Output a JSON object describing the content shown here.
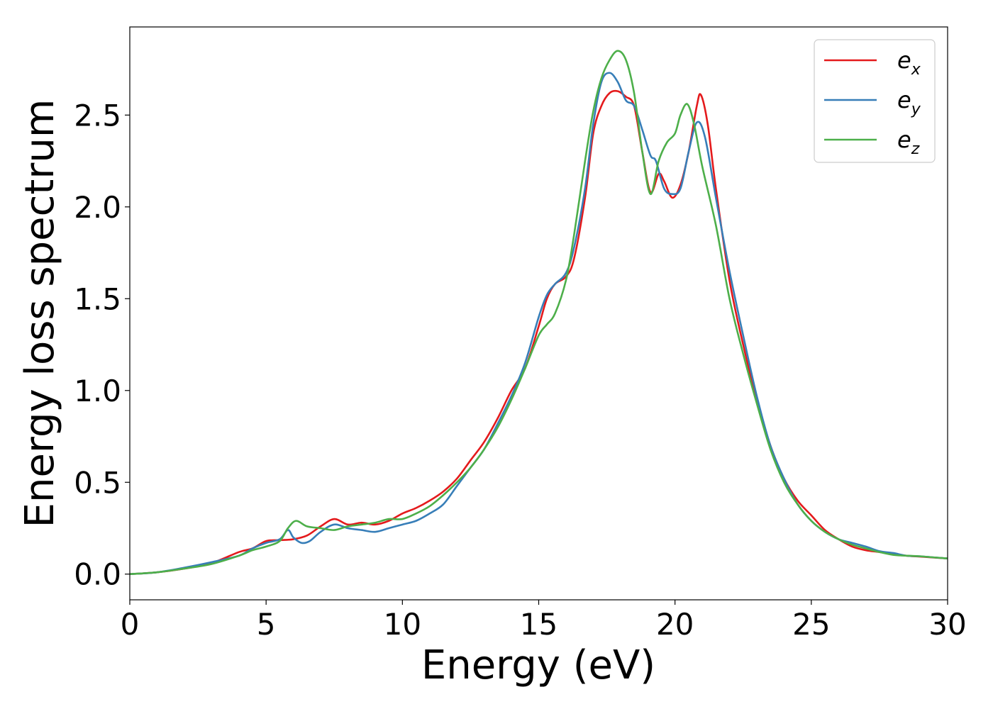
{
  "chart_data": {
    "type": "line",
    "title": "",
    "xlabel": "Energy (eV)",
    "ylabel": "Energy loss spectrum",
    "xlim": [
      0,
      30
    ],
    "ylim": [
      -0.14,
      2.98
    ],
    "xticks": [
      0,
      5,
      10,
      15,
      20,
      25,
      30
    ],
    "xtick_labels": [
      "0",
      "5",
      "10",
      "15",
      "20",
      "25",
      "30"
    ],
    "yticks": [
      0.0,
      0.5,
      1.0,
      1.5,
      2.0,
      2.5
    ],
    "ytick_labels": [
      "0.0",
      "0.5",
      "1.0",
      "1.5",
      "2.0",
      "2.5"
    ],
    "grid": false,
    "legend_position": "top-right",
    "series": [
      {
        "name": "e_x",
        "label_base": "e",
        "label_sub": "x",
        "color": "#e41a1c",
        "points": [
          [
            0,
            0
          ],
          [
            1,
            0.01
          ],
          [
            2,
            0.03
          ],
          [
            3,
            0.06
          ],
          [
            4,
            0.12
          ],
          [
            4.5,
            0.14
          ],
          [
            5,
            0.18
          ],
          [
            5.5,
            0.185
          ],
          [
            6,
            0.19
          ],
          [
            6.5,
            0.21
          ],
          [
            7,
            0.26
          ],
          [
            7.5,
            0.3
          ],
          [
            8,
            0.27
          ],
          [
            8.5,
            0.28
          ],
          [
            9,
            0.27
          ],
          [
            9.5,
            0.29
          ],
          [
            10,
            0.33
          ],
          [
            10.5,
            0.36
          ],
          [
            11,
            0.4
          ],
          [
            11.5,
            0.45
          ],
          [
            12,
            0.52
          ],
          [
            12.5,
            0.62
          ],
          [
            13,
            0.72
          ],
          [
            13.5,
            0.85
          ],
          [
            14,
            1.0
          ],
          [
            14.5,
            1.12
          ],
          [
            15,
            1.35
          ],
          [
            15.3,
            1.5
          ],
          [
            15.6,
            1.58
          ],
          [
            16,
            1.62
          ],
          [
            16.3,
            1.72
          ],
          [
            16.7,
            2.05
          ],
          [
            17,
            2.4
          ],
          [
            17.3,
            2.55
          ],
          [
            17.6,
            2.62
          ],
          [
            17.9,
            2.63
          ],
          [
            18.2,
            2.6
          ],
          [
            18.5,
            2.55
          ],
          [
            18.8,
            2.3
          ],
          [
            19.1,
            2.08
          ],
          [
            19.4,
            2.18
          ],
          [
            19.6,
            2.14
          ],
          [
            19.9,
            2.05
          ],
          [
            20.2,
            2.12
          ],
          [
            20.5,
            2.3
          ],
          [
            20.8,
            2.55
          ],
          [
            20.95,
            2.61
          ],
          [
            21.2,
            2.45
          ],
          [
            21.5,
            2.1
          ],
          [
            22,
            1.6
          ],
          [
            22.5,
            1.25
          ],
          [
            23,
            0.95
          ],
          [
            23.5,
            0.7
          ],
          [
            24,
            0.52
          ],
          [
            24.5,
            0.4
          ],
          [
            25,
            0.32
          ],
          [
            25.5,
            0.24
          ],
          [
            26,
            0.19
          ],
          [
            26.5,
            0.15
          ],
          [
            27,
            0.13
          ],
          [
            27.5,
            0.12
          ],
          [
            28,
            0.11
          ],
          [
            28.5,
            0.1
          ],
          [
            29,
            0.095
          ],
          [
            30,
            0.085
          ]
        ]
      },
      {
        "name": "e_y",
        "label_base": "e",
        "label_sub": "y",
        "color": "#377eb8",
        "points": [
          [
            0,
            0
          ],
          [
            1,
            0.01
          ],
          [
            2,
            0.035
          ],
          [
            3,
            0.065
          ],
          [
            4,
            0.1
          ],
          [
            4.5,
            0.14
          ],
          [
            5,
            0.17
          ],
          [
            5.5,
            0.19
          ],
          [
            5.8,
            0.24
          ],
          [
            6,
            0.2
          ],
          [
            6.3,
            0.17
          ],
          [
            6.6,
            0.18
          ],
          [
            7,
            0.23
          ],
          [
            7.5,
            0.27
          ],
          [
            8,
            0.25
          ],
          [
            8.5,
            0.24
          ],
          [
            9,
            0.23
          ],
          [
            9.5,
            0.25
          ],
          [
            10,
            0.27
          ],
          [
            10.5,
            0.29
          ],
          [
            11,
            0.33
          ],
          [
            11.5,
            0.38
          ],
          [
            12,
            0.48
          ],
          [
            12.5,
            0.58
          ],
          [
            13,
            0.68
          ],
          [
            13.5,
            0.82
          ],
          [
            14,
            0.97
          ],
          [
            14.5,
            1.15
          ],
          [
            15,
            1.4
          ],
          [
            15.3,
            1.52
          ],
          [
            15.6,
            1.58
          ],
          [
            16,
            1.64
          ],
          [
            16.3,
            1.78
          ],
          [
            16.7,
            2.1
          ],
          [
            17,
            2.45
          ],
          [
            17.3,
            2.68
          ],
          [
            17.6,
            2.73
          ],
          [
            17.9,
            2.68
          ],
          [
            18.2,
            2.58
          ],
          [
            18.5,
            2.55
          ],
          [
            18.8,
            2.42
          ],
          [
            19.1,
            2.28
          ],
          [
            19.3,
            2.25
          ],
          [
            19.6,
            2.1
          ],
          [
            19.9,
            2.07
          ],
          [
            20.2,
            2.1
          ],
          [
            20.5,
            2.3
          ],
          [
            20.8,
            2.46
          ],
          [
            21.1,
            2.38
          ],
          [
            21.5,
            2.05
          ],
          [
            22,
            1.65
          ],
          [
            22.5,
            1.3
          ],
          [
            23,
            0.97
          ],
          [
            23.5,
            0.7
          ],
          [
            24,
            0.52
          ],
          [
            24.5,
            0.38
          ],
          [
            25,
            0.29
          ],
          [
            25.5,
            0.23
          ],
          [
            26,
            0.19
          ],
          [
            26.5,
            0.17
          ],
          [
            27,
            0.15
          ],
          [
            27.5,
            0.125
          ],
          [
            28,
            0.115
          ],
          [
            28.5,
            0.1
          ],
          [
            29,
            0.097
          ],
          [
            30,
            0.085
          ]
        ]
      },
      {
        "name": "e_z",
        "label_base": "e",
        "label_sub": "z",
        "color": "#4daf4a",
        "points": [
          [
            0,
            0
          ],
          [
            1,
            0.01
          ],
          [
            2,
            0.03
          ],
          [
            3,
            0.055
          ],
          [
            4,
            0.1
          ],
          [
            4.5,
            0.13
          ],
          [
            5,
            0.15
          ],
          [
            5.5,
            0.18
          ],
          [
            5.8,
            0.25
          ],
          [
            6.1,
            0.29
          ],
          [
            6.5,
            0.26
          ],
          [
            7,
            0.25
          ],
          [
            7.5,
            0.24
          ],
          [
            8,
            0.26
          ],
          [
            8.5,
            0.27
          ],
          [
            9,
            0.28
          ],
          [
            9.5,
            0.3
          ],
          [
            10,
            0.3
          ],
          [
            10.5,
            0.33
          ],
          [
            11,
            0.37
          ],
          [
            11.5,
            0.43
          ],
          [
            12,
            0.5
          ],
          [
            12.5,
            0.58
          ],
          [
            13,
            0.68
          ],
          [
            13.5,
            0.8
          ],
          [
            14,
            0.95
          ],
          [
            14.5,
            1.12
          ],
          [
            15,
            1.3
          ],
          [
            15.3,
            1.36
          ],
          [
            15.6,
            1.42
          ],
          [
            16,
            1.6
          ],
          [
            16.3,
            1.85
          ],
          [
            16.7,
            2.25
          ],
          [
            17,
            2.52
          ],
          [
            17.3,
            2.7
          ],
          [
            17.6,
            2.8
          ],
          [
            17.9,
            2.85
          ],
          [
            18.2,
            2.8
          ],
          [
            18.5,
            2.62
          ],
          [
            18.8,
            2.3
          ],
          [
            19.1,
            2.07
          ],
          [
            19.4,
            2.25
          ],
          [
            19.7,
            2.35
          ],
          [
            20,
            2.4
          ],
          [
            20.2,
            2.5
          ],
          [
            20.45,
            2.56
          ],
          [
            20.7,
            2.45
          ],
          [
            21,
            2.22
          ],
          [
            21.5,
            1.9
          ],
          [
            22,
            1.5
          ],
          [
            22.5,
            1.2
          ],
          [
            23,
            0.93
          ],
          [
            23.5,
            0.68
          ],
          [
            24,
            0.5
          ],
          [
            24.5,
            0.38
          ],
          [
            25,
            0.29
          ],
          [
            25.5,
            0.23
          ],
          [
            26,
            0.19
          ],
          [
            26.5,
            0.16
          ],
          [
            27,
            0.14
          ],
          [
            27.5,
            0.12
          ],
          [
            28,
            0.105
          ],
          [
            28.5,
            0.1
          ],
          [
            29,
            0.097
          ],
          [
            30,
            0.085
          ]
        ]
      }
    ]
  }
}
